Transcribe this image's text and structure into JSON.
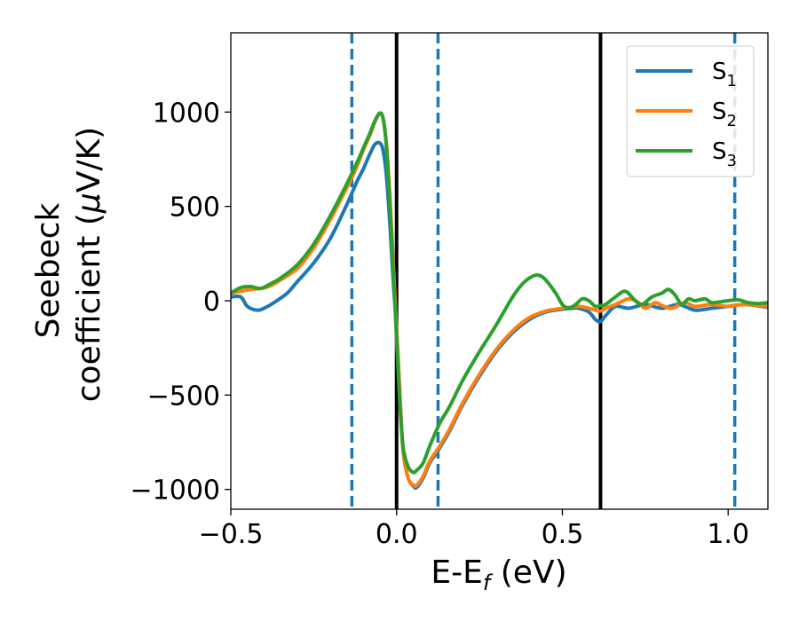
{
  "chart_data": {
    "type": "line",
    "title": "",
    "xlabel": "E-E",
    "xlabel_sub": "f",
    "xlabel_unit": " (eV)",
    "ylabel_line1": "Seebeck",
    "ylabel_line2": "coefficient  (",
    "ylabel_mu": "μ",
    "ylabel_unit": "V/K)",
    "xlim": [
      -0.5,
      1.12
    ],
    "ylim": [
      -1105,
      1420
    ],
    "xticks": [
      -0.5,
      0.0,
      0.5,
      1.0
    ],
    "xtick_labels": [
      "−0.5",
      "0.0",
      "0.5",
      "1.0"
    ],
    "yticks": [
      -1000,
      -500,
      0,
      500,
      1000
    ],
    "ytick_labels": [
      "−1000",
      "−500",
      "0",
      "500",
      "1000"
    ],
    "vlines_solid": [
      0.0,
      0.615
    ],
    "vlines_dashed": [
      -0.135,
      0.125,
      1.02
    ],
    "legend": {
      "placement": "top-right"
    },
    "series": [
      {
        "name": "S",
        "sub": "1",
        "color": "#1f77b4",
        "points": [
          [
            -0.5,
            20
          ],
          [
            -0.47,
            20
          ],
          [
            -0.45,
            -30
          ],
          [
            -0.42,
            -50
          ],
          [
            -0.4,
            -40
          ],
          [
            -0.37,
            -10
          ],
          [
            -0.33,
            40
          ],
          [
            -0.3,
            100
          ],
          [
            -0.25,
            200
          ],
          [
            -0.2,
            330
          ],
          [
            -0.15,
            510
          ],
          [
            -0.12,
            630
          ],
          [
            -0.1,
            700
          ],
          [
            -0.08,
            780
          ],
          [
            -0.065,
            830
          ],
          [
            -0.05,
            835
          ],
          [
            -0.04,
            790
          ],
          [
            -0.03,
            650
          ],
          [
            -0.02,
            400
          ],
          [
            -0.01,
            100
          ],
          [
            0.0,
            -150
          ],
          [
            0.01,
            -500
          ],
          [
            0.02,
            -800
          ],
          [
            0.035,
            -940
          ],
          [
            0.05,
            -980
          ],
          [
            0.06,
            -990
          ],
          [
            0.08,
            -940
          ],
          [
            0.1,
            -860
          ],
          [
            0.13,
            -780
          ],
          [
            0.16,
            -690
          ],
          [
            0.2,
            -550
          ],
          [
            0.25,
            -400
          ],
          [
            0.3,
            -270
          ],
          [
            0.35,
            -170
          ],
          [
            0.4,
            -100
          ],
          [
            0.45,
            -60
          ],
          [
            0.5,
            -45
          ],
          [
            0.53,
            -40
          ],
          [
            0.55,
            -40
          ],
          [
            0.58,
            -60
          ],
          [
            0.6,
            -100
          ],
          [
            0.615,
            -110
          ],
          [
            0.63,
            -80
          ],
          [
            0.66,
            -30
          ],
          [
            0.7,
            -40
          ],
          [
            0.75,
            -20
          ],
          [
            0.8,
            -40
          ],
          [
            0.85,
            -20
          ],
          [
            0.9,
            -50
          ],
          [
            0.95,
            -40
          ],
          [
            1.0,
            -30
          ],
          [
            1.05,
            -20
          ],
          [
            1.12,
            -35
          ]
        ]
      },
      {
        "name": "S",
        "sub": "2",
        "color": "#ff7f0e",
        "points": [
          [
            -0.5,
            40
          ],
          [
            -0.47,
            50
          ],
          [
            -0.44,
            60
          ],
          [
            -0.41,
            65
          ],
          [
            -0.38,
            80
          ],
          [
            -0.35,
            110
          ],
          [
            -0.3,
            170
          ],
          [
            -0.25,
            280
          ],
          [
            -0.2,
            430
          ],
          [
            -0.15,
            600
          ],
          [
            -0.12,
            710
          ],
          [
            -0.1,
            800
          ],
          [
            -0.08,
            880
          ],
          [
            -0.065,
            950
          ],
          [
            -0.05,
            990
          ],
          [
            -0.04,
            960
          ],
          [
            -0.03,
            820
          ],
          [
            -0.02,
            550
          ],
          [
            -0.01,
            200
          ],
          [
            0.0,
            -150
          ],
          [
            0.01,
            -500
          ],
          [
            0.02,
            -800
          ],
          [
            0.035,
            -940
          ],
          [
            0.05,
            -975
          ],
          [
            0.06,
            -980
          ],
          [
            0.08,
            -930
          ],
          [
            0.1,
            -850
          ],
          [
            0.13,
            -770
          ],
          [
            0.16,
            -680
          ],
          [
            0.2,
            -540
          ],
          [
            0.25,
            -390
          ],
          [
            0.3,
            -260
          ],
          [
            0.35,
            -160
          ],
          [
            0.4,
            -90
          ],
          [
            0.45,
            -55
          ],
          [
            0.5,
            -40
          ],
          [
            0.55,
            -30
          ],
          [
            0.58,
            -40
          ],
          [
            0.6,
            -50
          ],
          [
            0.615,
            -55
          ],
          [
            0.63,
            -40
          ],
          [
            0.66,
            -20
          ],
          [
            0.7,
            10
          ],
          [
            0.73,
            -10
          ],
          [
            0.75,
            -40
          ],
          [
            0.78,
            -10
          ],
          [
            0.8,
            -25
          ],
          [
            0.83,
            -40
          ],
          [
            0.87,
            -10
          ],
          [
            0.9,
            -30
          ],
          [
            0.95,
            -20
          ],
          [
            1.0,
            -30
          ],
          [
            1.05,
            -20
          ],
          [
            1.12,
            -30
          ]
        ]
      },
      {
        "name": "S",
        "sub": "3",
        "color": "#2ca02c",
        "points": [
          [
            -0.5,
            40
          ],
          [
            -0.47,
            70
          ],
          [
            -0.44,
            75
          ],
          [
            -0.41,
            65
          ],
          [
            -0.38,
            90
          ],
          [
            -0.35,
            120
          ],
          [
            -0.3,
            190
          ],
          [
            -0.25,
            300
          ],
          [
            -0.2,
            450
          ],
          [
            -0.15,
            620
          ],
          [
            -0.12,
            730
          ],
          [
            -0.1,
            810
          ],
          [
            -0.08,
            890
          ],
          [
            -0.065,
            955
          ],
          [
            -0.05,
            995
          ],
          [
            -0.04,
            960
          ],
          [
            -0.03,
            800
          ],
          [
            -0.02,
            500
          ],
          [
            -0.01,
            150
          ],
          [
            0.0,
            -200
          ],
          [
            0.01,
            -550
          ],
          [
            0.02,
            -780
          ],
          [
            0.035,
            -880
          ],
          [
            0.05,
            -910
          ],
          [
            0.06,
            -900
          ],
          [
            0.08,
            -860
          ],
          [
            0.1,
            -770
          ],
          [
            0.13,
            -650
          ],
          [
            0.16,
            -560
          ],
          [
            0.2,
            -420
          ],
          [
            0.25,
            -270
          ],
          [
            0.3,
            -130
          ],
          [
            0.35,
            20
          ],
          [
            0.38,
            90
          ],
          [
            0.41,
            130
          ],
          [
            0.43,
            135
          ],
          [
            0.45,
            110
          ],
          [
            0.48,
            40
          ],
          [
            0.5,
            -20
          ],
          [
            0.52,
            -40
          ],
          [
            0.54,
            -20
          ],
          [
            0.56,
            10
          ],
          [
            0.58,
            0
          ],
          [
            0.6,
            -30
          ],
          [
            0.615,
            -25
          ],
          [
            0.63,
            -20
          ],
          [
            0.66,
            20
          ],
          [
            0.69,
            50
          ],
          [
            0.72,
            0
          ],
          [
            0.74,
            -20
          ],
          [
            0.77,
            20
          ],
          [
            0.8,
            40
          ],
          [
            0.82,
            60
          ],
          [
            0.84,
            30
          ],
          [
            0.86,
            -20
          ],
          [
            0.88,
            10
          ],
          [
            0.9,
            0
          ],
          [
            0.93,
            10
          ],
          [
            0.95,
            -10
          ],
          [
            0.98,
            -5
          ],
          [
            1.0,
            0
          ],
          [
            1.03,
            5
          ],
          [
            1.06,
            -10
          ],
          [
            1.09,
            -15
          ],
          [
            1.12,
            -10
          ]
        ]
      }
    ]
  }
}
